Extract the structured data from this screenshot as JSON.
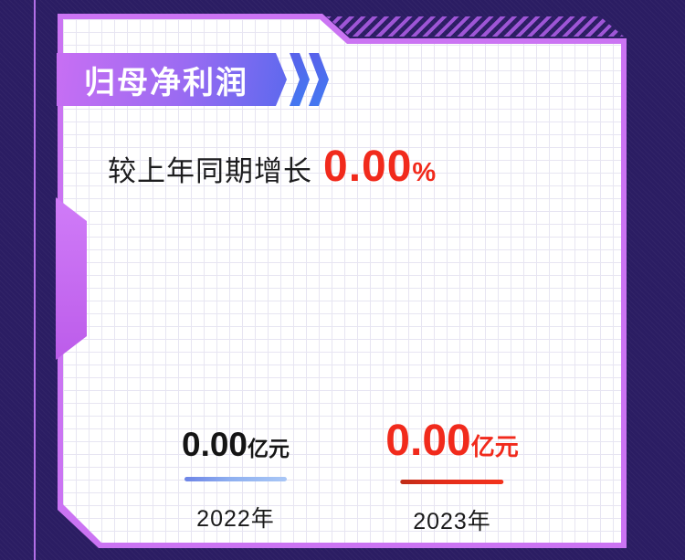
{
  "header": {
    "badge_label": "归母净利润"
  },
  "growth": {
    "label": "较上年同期增长",
    "value": "0.00",
    "unit": "%"
  },
  "years": [
    {
      "value": "0.00",
      "unit": "亿元",
      "label": "2022年"
    },
    {
      "value": "0.00",
      "unit": "亿元",
      "label": "2023年"
    }
  ],
  "colors": {
    "background": "#2b1d63",
    "card_border": "#cb74f3",
    "ribbon_gradient_start": "#c86ff3",
    "ribbon_gradient_end": "#5d69ee",
    "chevron_blue": "#4468ec",
    "hatch_purple": "#9e55d6",
    "accent_red": "#f12a1c",
    "value_dark": "#151515",
    "underline_blue_start": "#6d84e6",
    "underline_blue_end": "#a9c7f6",
    "underline_red_start": "#bf2d18",
    "underline_red_end": "#f3331d"
  },
  "chart_data": {
    "type": "bar",
    "title": "归母净利润",
    "subtitle": "较上年同期增长 0.00%",
    "categories": [
      "2022年",
      "2023年"
    ],
    "values": [
      0.0,
      0.0
    ],
    "unit": "亿元",
    "growth_percent": 0.0,
    "series_colors": [
      "#6d84e6",
      "#f12a1c"
    ],
    "legend_position": "none",
    "grid": true
  }
}
